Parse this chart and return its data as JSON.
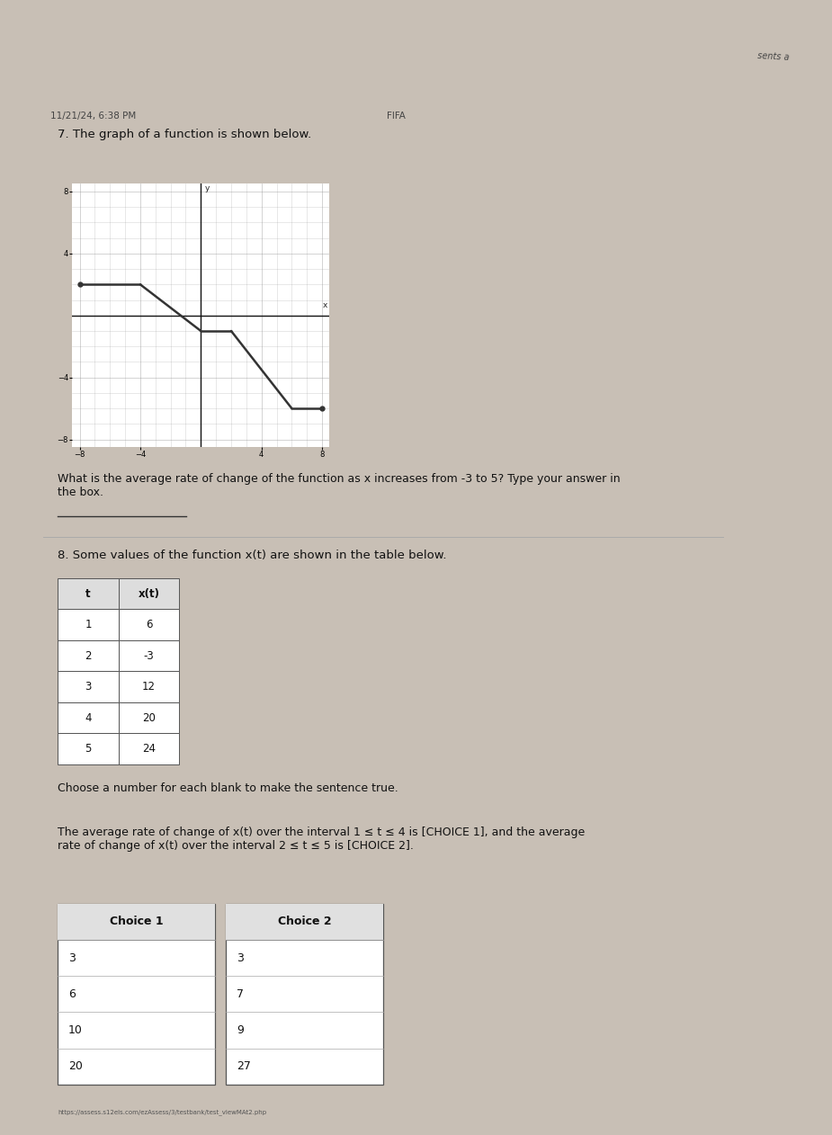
{
  "header_left": "11/21/24, 6:38 PM",
  "header_right": "FIFA",
  "corner_text": "sents a",
  "q7_title": "7. The graph of a function is shown below.",
  "q7_question": "What is the average rate of change of the function as x increases from -3 to 5? Type your answer in\nthe box.",
  "q8_title": "8. Some values of the function x(t) are shown in the table below.",
  "q8_table_headers": [
    "t",
    "x(t)"
  ],
  "q8_table_data": [
    [
      1,
      6
    ],
    [
      2,
      -3
    ],
    [
      3,
      12
    ],
    [
      4,
      20
    ],
    [
      5,
      24
    ]
  ],
  "q8_instruction": "Choose a number for each blank to make the sentence true.",
  "q8_sentence": "The average rate of change of x(t) over the interval 1 ≤ t ≤ 4 is [CHOICE 1], and the average\nrate of change of x(t) over the interval 2 ≤ t ≤ 5 is [CHOICE 2].",
  "choice1_header": "Choice 1",
  "choice2_header": "Choice 2",
  "choice1_values": [
    3,
    6,
    10,
    20
  ],
  "choice2_values": [
    3,
    7,
    9,
    27
  ],
  "graph": {
    "xlim": [
      -8.5,
      8.5
    ],
    "ylim": [
      -8.5,
      8.5
    ],
    "xticks": [
      -8,
      -4,
      4,
      8
    ],
    "yticks": [
      -8,
      -4,
      4,
      8
    ],
    "segments": [
      {
        "x": [
          -8,
          -4
        ],
        "y": [
          2,
          2
        ]
      },
      {
        "x": [
          -4,
          0
        ],
        "y": [
          2,
          -1
        ]
      },
      {
        "x": [
          0,
          2
        ],
        "y": [
          -1,
          -1
        ]
      },
      {
        "x": [
          2,
          6
        ],
        "y": [
          -1,
          -6
        ]
      },
      {
        "x": [
          6,
          8
        ],
        "y": [
          -6,
          -6
        ]
      }
    ],
    "line_color": "#333333",
    "line_width": 1.8,
    "grid_color": "#999999",
    "axis_color": "#111111"
  },
  "bg_color": "#c8bfb5",
  "paper_color": "#f0eeea",
  "text_color": "#111111",
  "font_size_body": 9,
  "font_size_header": 7.5,
  "font_size_title": 9.5,
  "url_text": "https://assess.s12els.com/ezAssess/3/testbank/test_viewMAt2.php"
}
